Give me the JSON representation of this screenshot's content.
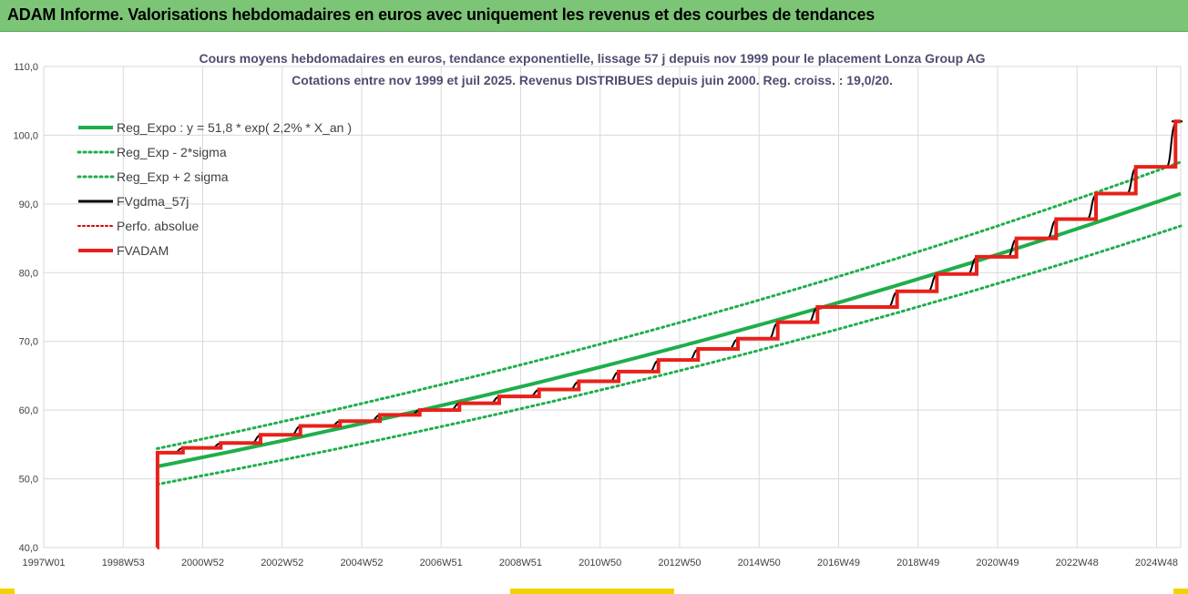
{
  "banner": {
    "title": "ADAM Informe. Valorisations hebdomadaires en euros avec uniquement les revenus et des courbes de tendances"
  },
  "colors": {
    "banner_bg": "#7cc576",
    "regression": "#1fae4b",
    "band": "#1fae4b",
    "fvgdma": "#000000",
    "perfo": "#e00000",
    "fvadam": "#e8211a",
    "grid": "#d9d9d9"
  },
  "chart_data": {
    "type": "line",
    "title": "Cours moyens hebdomadaires en euros, tendance exponentielle, lissage 57 j depuis nov 1999 pour le placement Lonza Group AG",
    "subtitle": "Cotations entre nov 1999 et juil 2025. Revenus DISTRIBUES depuis juin 2000. Reg. croiss. : 19,0/20.",
    "xlabel": "",
    "ylabel": "",
    "ylim": [
      40,
      110
    ],
    "yticks": [
      "40,0",
      "50,0",
      "60,0",
      "70,0",
      "80,0",
      "90,0",
      "100,0",
      "110,0"
    ],
    "xticks": [
      "1997W01",
      "1998W53",
      "2000W52",
      "2002W52",
      "2004W52",
      "2006W51",
      "2008W51",
      "2010W50",
      "2012W50",
      "2014W50",
      "2016W49",
      "2018W49",
      "2020W49",
      "2022W48",
      "2024W48"
    ],
    "xrange_years": [
      1997.0,
      2025.58
    ],
    "grid": true,
    "legend_position": "top-left",
    "series": [
      {
        "name": "Reg_Expo : y = 51,8 * exp( 2,2% *  X_an )",
        "style": "solid-thick",
        "x": [
          1999.85,
          2025.58
        ],
        "y": [
          51.8,
          91.5
        ]
      },
      {
        "name": "Reg_Exp - 2*sigma",
        "style": "dotted",
        "x": [
          1999.85,
          2025.58
        ],
        "y": [
          49.2,
          86.8
        ]
      },
      {
        "name": "Reg_Exp + 2 sigma",
        "style": "dotted",
        "x": [
          1999.85,
          2025.58
        ],
        "y": [
          54.4,
          96.1
        ]
      },
      {
        "name": "FVgdma_57j",
        "style": "solid",
        "x": [
          1999.85,
          2025.58
        ],
        "y": [
          53.8,
          101.0
        ]
      },
      {
        "name": "Perfo. absolue",
        "style": "dotted",
        "x": [],
        "y": []
      },
      {
        "name": "FVADAM",
        "style": "step-thick",
        "steps": [
          {
            "x": 1999.85,
            "y": 40.0
          },
          {
            "x": 1999.86,
            "y": 53.8
          },
          {
            "x": 2000.5,
            "y": 54.5
          },
          {
            "x": 2001.45,
            "y": 55.2
          },
          {
            "x": 2002.45,
            "y": 56.4
          },
          {
            "x": 2003.45,
            "y": 57.7
          },
          {
            "x": 2004.45,
            "y": 58.4
          },
          {
            "x": 2005.45,
            "y": 59.3
          },
          {
            "x": 2006.45,
            "y": 60.0
          },
          {
            "x": 2007.45,
            "y": 61.0
          },
          {
            "x": 2008.45,
            "y": 62.0
          },
          {
            "x": 2009.45,
            "y": 63.0
          },
          {
            "x": 2010.45,
            "y": 64.2
          },
          {
            "x": 2011.45,
            "y": 65.6
          },
          {
            "x": 2012.45,
            "y": 67.3
          },
          {
            "x": 2013.45,
            "y": 68.9
          },
          {
            "x": 2014.45,
            "y": 70.4
          },
          {
            "x": 2015.45,
            "y": 72.8
          },
          {
            "x": 2016.45,
            "y": 75.0
          },
          {
            "x": 2018.45,
            "y": 77.3
          },
          {
            "x": 2019.45,
            "y": 79.8
          },
          {
            "x": 2020.45,
            "y": 82.3
          },
          {
            "x": 2021.45,
            "y": 85.0
          },
          {
            "x": 2022.45,
            "y": 87.8
          },
          {
            "x": 2023.45,
            "y": 91.5
          },
          {
            "x": 2024.45,
            "y": 95.4
          },
          {
            "x": 2025.45,
            "y": 102.0
          },
          {
            "x": 2025.58,
            "y": 102.0
          }
        ]
      }
    ]
  }
}
